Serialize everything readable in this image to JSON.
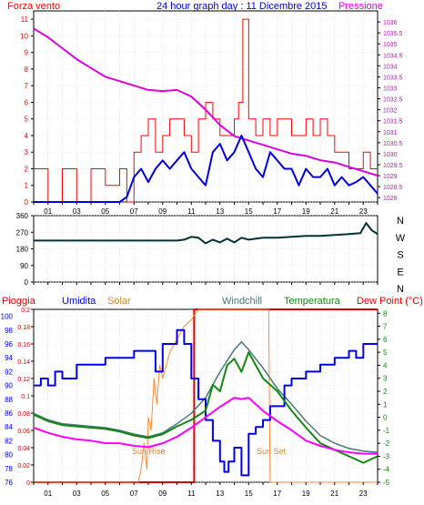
{
  "header": {
    "left_title": "Forza vento",
    "center_title": "24 hour graph day : 11 Dicembre 2015",
    "right_title": "Pressione"
  },
  "colors": {
    "wind": "#ff0000",
    "gust_speed": "#0000dd",
    "pressure": "#dd00dd",
    "direction": "#003333",
    "rain": "#dd0000",
    "humidity": "#0000ee",
    "solar": "#ff8833",
    "windchill": "#447777",
    "temperature": "#118811",
    "dewpoint": "#ff00ff"
  },
  "x_ticks": [
    "01",
    "03",
    "05",
    "07",
    "09",
    "11",
    "13",
    "15",
    "17",
    "19",
    "21",
    "23"
  ],
  "chart_data": [
    {
      "type": "line",
      "name": "wind_pressure",
      "left_axis_ticks": [
        "0",
        "1",
        "2",
        "3",
        "4",
        "5",
        "6",
        "7",
        "8",
        "9",
        "10",
        "11"
      ],
      "right_axis_ticks": [
        "1028",
        "1028.5",
        "1029",
        "1029.5",
        "1030",
        "1030.5",
        "1031",
        "1031.5",
        "1032",
        "1032.5",
        "1033",
        "1033.5",
        "1034",
        "1034.5",
        "1035",
        "1035.5",
        "1036"
      ],
      "ylim_left": [
        0,
        11.5
      ],
      "ylim_right": [
        1027.8,
        1036.5
      ],
      "xlim": [
        0,
        24
      ],
      "series": [
        {
          "name": "Forza vento",
          "x": [
            0,
            1,
            2,
            3,
            4,
            5,
            6,
            6.5,
            7,
            7.5,
            8,
            8.5,
            9,
            9.5,
            10,
            10.5,
            11,
            11.5,
            12,
            12.5,
            13,
            13.5,
            14,
            14.3,
            14.6,
            15,
            15.5,
            16,
            16.5,
            17,
            17.5,
            18,
            18.5,
            19,
            19.5,
            20,
            20.5,
            21,
            21.5,
            22,
            22.5,
            23,
            23.5,
            24
          ],
          "y": [
            2,
            0,
            2,
            0,
            2,
            1,
            2,
            0,
            3,
            4,
            5,
            3,
            4,
            5,
            5,
            4,
            3,
            5,
            6,
            5,
            4,
            4,
            5,
            6,
            11,
            5,
            4,
            5,
            4,
            5,
            5,
            4,
            4,
            5,
            4,
            5,
            4,
            3,
            3,
            2,
            2,
            3,
            2,
            2
          ]
        },
        {
          "name": "wind_avg",
          "x": [
            0,
            1,
            2,
            3,
            4,
            5,
            6,
            6.5,
            7,
            7.5,
            8,
            8.5,
            9,
            9.5,
            10,
            10.5,
            11,
            11.5,
            12,
            12.5,
            13,
            13.5,
            14,
            14.5,
            15,
            15.5,
            16,
            16.5,
            17,
            17.5,
            18,
            18.5,
            19,
            19.5,
            20,
            20.5,
            21,
            21.5,
            22,
            22.5,
            23,
            23.5,
            24
          ],
          "y": [
            0,
            0,
            0,
            0,
            0,
            0,
            0,
            0.3,
            1.5,
            2,
            1.2,
            2,
            2.5,
            2,
            2.5,
            3,
            2,
            1.5,
            1,
            3,
            3.5,
            2.5,
            3,
            4,
            3,
            2,
            1.5,
            3,
            2.5,
            2,
            2,
            1,
            2,
            1.5,
            1.5,
            2,
            1,
            1.5,
            1,
            1.2,
            1.5,
            1,
            0.5
          ]
        },
        {
          "name": "Pressione",
          "x": [
            0,
            1,
            2,
            3,
            4,
            5,
            6,
            7,
            8,
            9,
            10,
            11,
            12,
            13,
            14,
            15,
            16,
            17,
            18,
            19,
            20,
            21,
            22,
            23,
            24
          ],
          "y": [
            1035.7,
            1035.3,
            1034.8,
            1034.3,
            1033.9,
            1033.5,
            1033.3,
            1033.1,
            1032.9,
            1032.85,
            1032.9,
            1032.6,
            1032,
            1031.3,
            1030.8,
            1030.6,
            1030.4,
            1030.2,
            1030,
            1029.9,
            1029.7,
            1029.6,
            1029.4,
            1029.2,
            1029
          ]
        }
      ]
    },
    {
      "type": "line",
      "name": "wind_direction",
      "left_axis_ticks": [
        "0",
        "90",
        "180",
        "270",
        "360"
      ],
      "right_axis_letters": [
        "N",
        "W",
        "S",
        "E",
        "N"
      ],
      "ylim": [
        0,
        360
      ],
      "xlim": [
        0,
        24
      ],
      "series": [
        {
          "name": "direzione",
          "x": [
            0,
            2,
            4,
            6,
            8,
            10,
            10.5,
            11,
            11.5,
            12,
            12.5,
            13,
            13.5,
            14,
            14.5,
            15,
            16,
            17,
            18,
            19,
            20,
            21,
            22,
            22.8,
            23.2,
            23.6,
            24
          ],
          "y": [
            225,
            225,
            225,
            225,
            225,
            225,
            230,
            245,
            240,
            210,
            230,
            215,
            235,
            215,
            240,
            230,
            240,
            240,
            245,
            250,
            250,
            255,
            260,
            265,
            320,
            280,
            260
          ]
        }
      ]
    },
    {
      "type": "line",
      "name": "temp_humidity_rain",
      "header_labels": [
        "Pioggia",
        "Umidita",
        "Solar",
        "Windchill",
        "Temperatura",
        "Dew Point (°C)"
      ],
      "left_axis_ticks": [
        "76",
        "78",
        "80",
        "82",
        "84",
        "86",
        "88",
        "90",
        "92",
        "94",
        "96",
        "98",
        "100"
      ],
      "left2_axis_ticks": [
        "0",
        "0.02",
        "0.04",
        "0.06",
        "0.08",
        "0.1",
        "0.12",
        "0.14",
        "0.16",
        "0.18",
        "0.2"
      ],
      "right_axis_ticks": [
        "-5",
        "-4",
        "-3",
        "-2",
        "-1",
        "0",
        "1",
        "2",
        "3",
        "4",
        "5",
        "6",
        "7",
        "8"
      ],
      "annotations": [
        "Sun Rise",
        "Sun Set"
      ],
      "ylim_humidity": [
        76,
        101
      ],
      "ylim_temp": [
        -5,
        8.3
      ],
      "xlim": [
        0,
        24
      ],
      "series": [
        {
          "name": "Umidita",
          "x": [
            0,
            0.5,
            1,
            1.5,
            2,
            3,
            4,
            5,
            6,
            7,
            8,
            8.5,
            9,
            9.5,
            10,
            10.5,
            11,
            11.5,
            12,
            12.5,
            13,
            13.3,
            13.6,
            14,
            14.5,
            15,
            15.5,
            16,
            16.5,
            17,
            17.5,
            18,
            19,
            20,
            21,
            22,
            22.5,
            23,
            24
          ],
          "y": [
            90,
            91,
            90,
            92,
            91,
            93,
            93,
            94,
            94,
            95,
            95,
            92,
            96,
            96,
            98,
            96,
            91,
            88,
            85,
            82,
            79,
            77.5,
            79,
            81,
            77,
            83,
            84,
            85,
            87,
            87,
            90,
            91,
            92,
            93,
            94,
            95,
            94,
            96,
            96
          ]
        },
        {
          "name": "Temperatura",
          "x": [
            0,
            1,
            2,
            3,
            4,
            5,
            6,
            7,
            8,
            9,
            10,
            11,
            12,
            13,
            14,
            14.5,
            15,
            15.5,
            16,
            17,
            18,
            19,
            20,
            21,
            22,
            23,
            24
          ],
          "y": [
            0.3,
            -0.2,
            -0.5,
            -0.6,
            -0.7,
            -0.8,
            -1.0,
            -1.3,
            -1.5,
            -1.2,
            -0.5,
            0.3,
            1.5,
            3.5,
            5.2,
            5.8,
            5.2,
            4.5,
            3.8,
            2.2,
            1.0,
            -0.3,
            -1.4,
            -2.0,
            -2.4,
            -2.6,
            -2.7
          ]
        },
        {
          "name": "Windchill",
          "x": [
            0,
            1,
            2,
            3,
            4,
            5,
            6,
            7,
            8,
            9,
            10,
            11,
            12,
            12.5,
            13,
            13.5,
            14,
            14.5,
            15,
            15.5,
            16,
            17,
            18,
            19,
            20,
            21,
            22,
            23,
            24
          ],
          "y": [
            0.2,
            -0.3,
            -0.6,
            -0.7,
            -0.8,
            -0.9,
            -1.1,
            -1.4,
            -1.6,
            -1.3,
            -0.7,
            -0.2,
            0.5,
            2.5,
            2.0,
            4.0,
            4.5,
            3.5,
            5.0,
            4.0,
            3.0,
            2.0,
            0.5,
            -0.8,
            -2.0,
            -2.5,
            -3.0,
            -3.5,
            -3.0
          ]
        },
        {
          "name": "Dew Point (°C)",
          "x": [
            0,
            1,
            2,
            3,
            4,
            5,
            6,
            7,
            8,
            9,
            10,
            11,
            12,
            13,
            14,
            14.5,
            15,
            15.5,
            16,
            17,
            18,
            19,
            20,
            21,
            22,
            23,
            24
          ],
          "y": [
            -0.8,
            -1.2,
            -1.5,
            -1.7,
            -1.8,
            -2.0,
            -2.0,
            -2.2,
            -2.3,
            -2.0,
            -1.5,
            -0.8,
            0.0,
            0.8,
            1.5,
            1.4,
            1.5,
            1.0,
            0.5,
            -0.3,
            -1.0,
            -1.8,
            -2.2,
            -2.5,
            -2.7,
            -2.8,
            -2.8
          ]
        },
        {
          "name": "Solar",
          "x": [
            0,
            7.3,
            7.5,
            7.7,
            7.9,
            8.0,
            8.2,
            8.4,
            8.6,
            8.8,
            9,
            9.5,
            10,
            10.5,
            11,
            11.5,
            12,
            12.5,
            13,
            13.5,
            14,
            14.5,
            15,
            15.5,
            16,
            16.4,
            16.5,
            17,
            24
          ],
          "y": [
            -5,
            -5,
            -4,
            -2,
            -4,
            0,
            -1,
            3,
            1,
            4,
            3,
            5,
            6,
            7,
            7.5,
            8.3,
            8.3,
            8.3,
            8.3,
            8.3,
            8.3,
            8.3,
            8.3,
            8.3,
            8.3,
            8.3,
            -5,
            -5,
            -5
          ]
        },
        {
          "name": "Pioggia",
          "x": [
            0,
            11.2,
            11.2,
            24
          ],
          "y": [
            0,
            0,
            0.2,
            0.2
          ]
        }
      ]
    }
  ]
}
